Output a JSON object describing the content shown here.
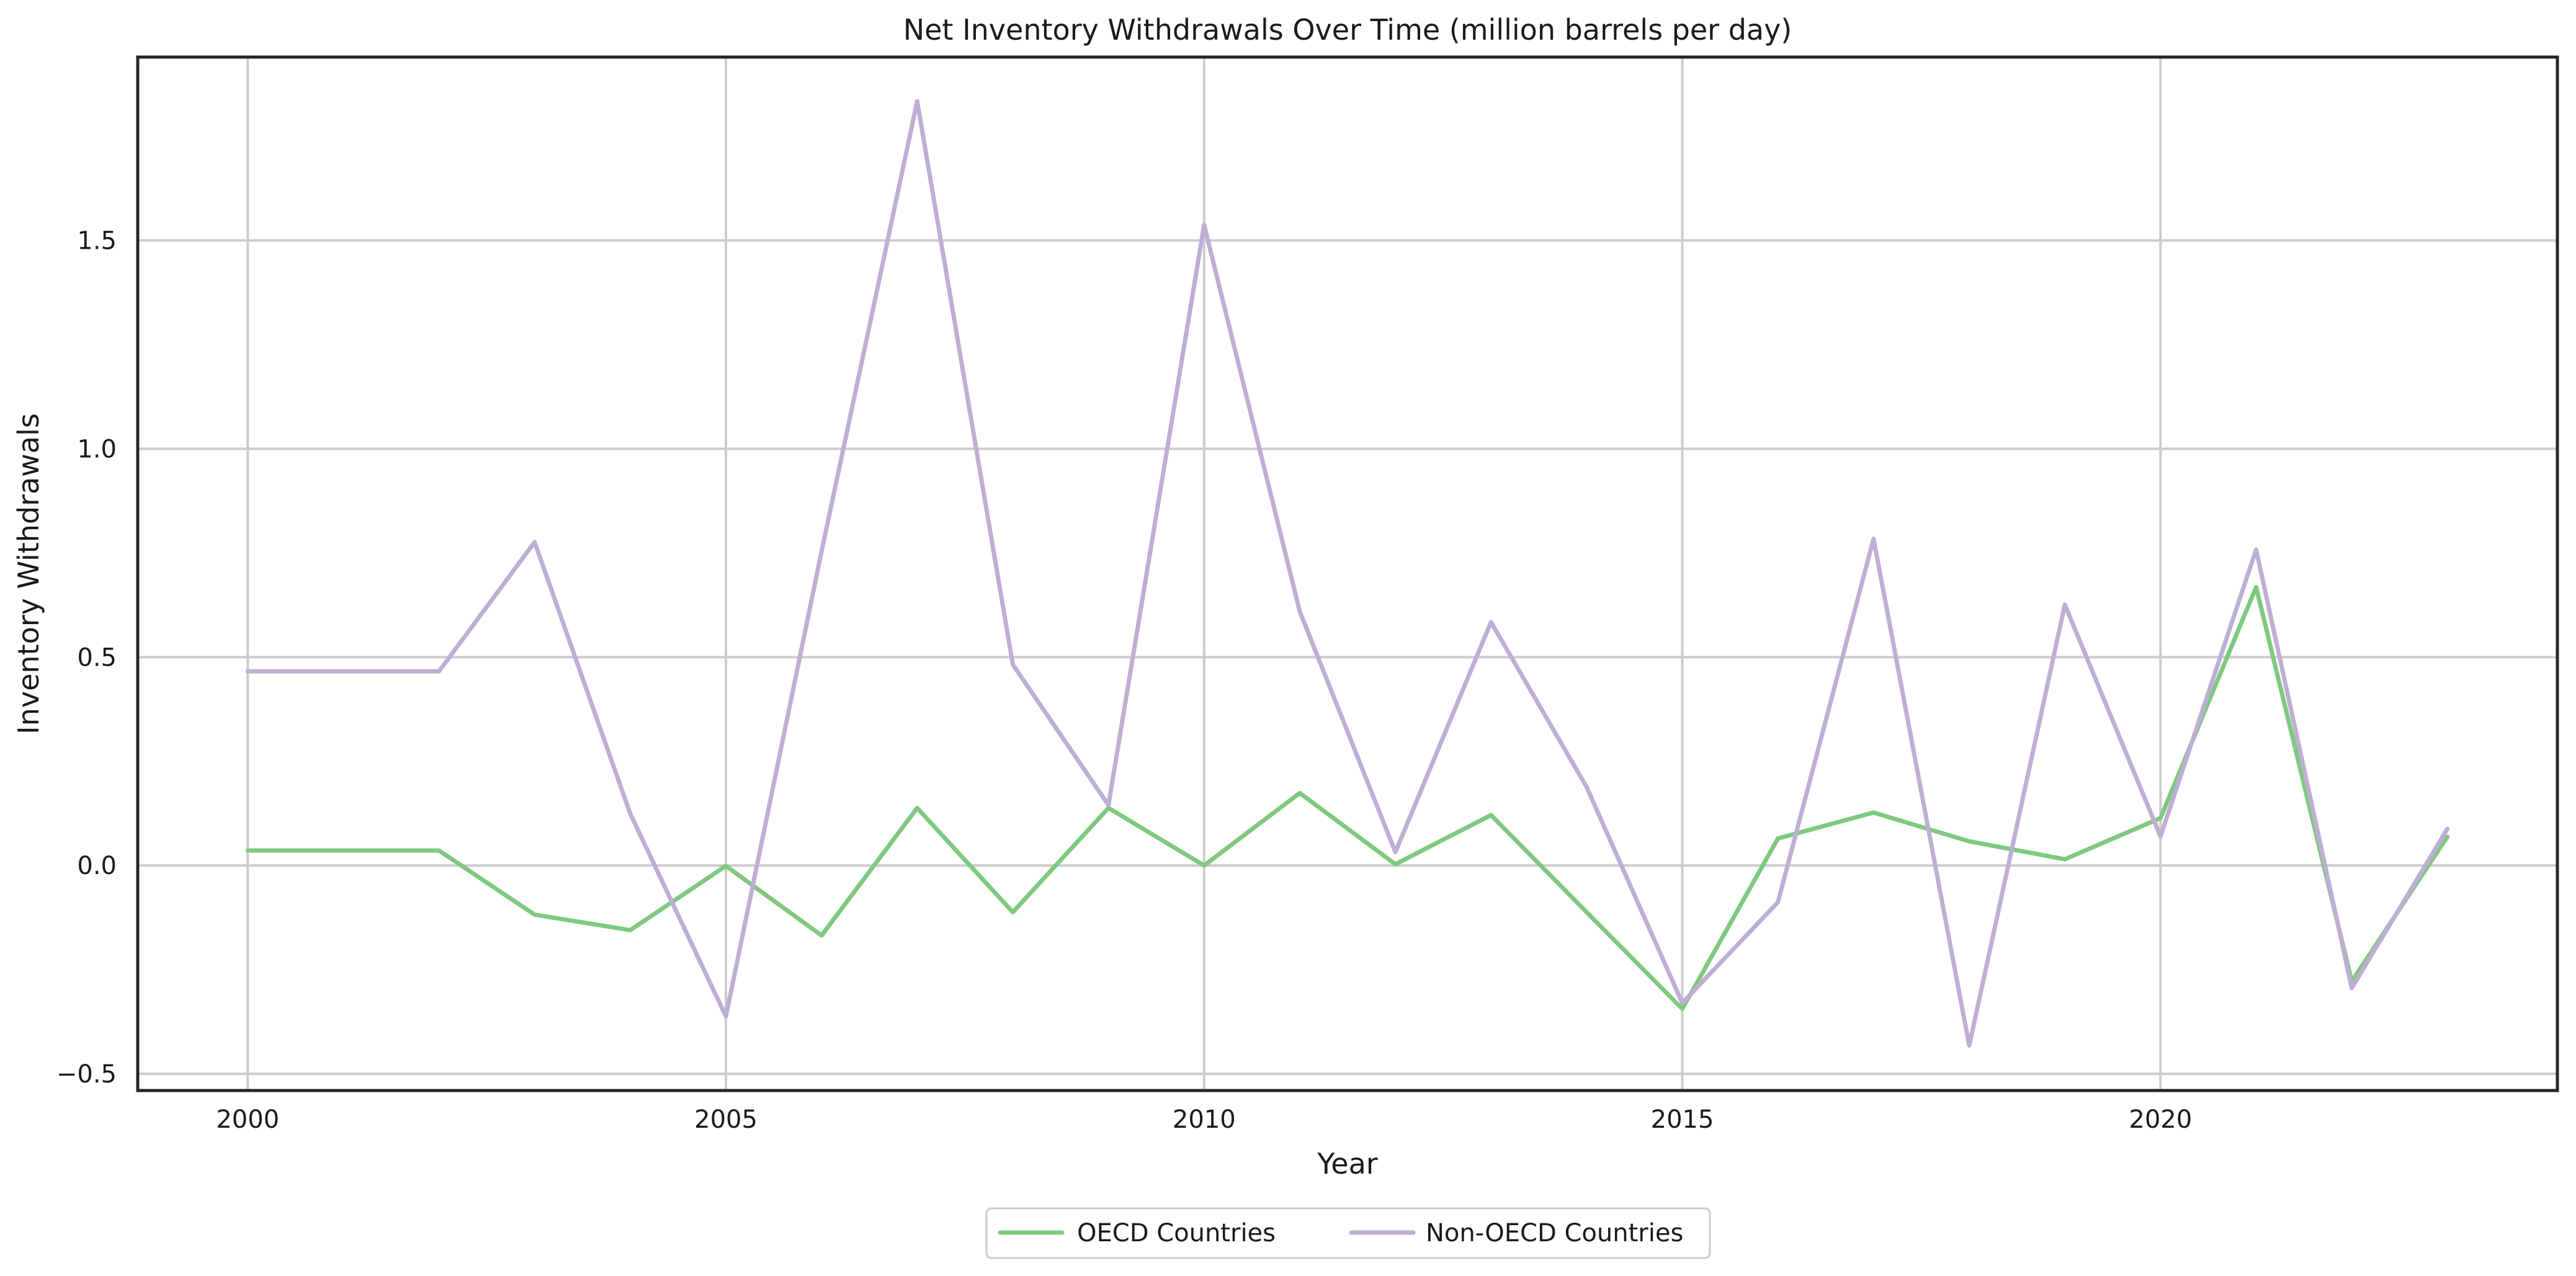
{
  "chart_data": {
    "type": "line",
    "title": "Net Inventory Withdrawals Over Time (million barrels per day)",
    "xlabel": "Year",
    "ylabel": "Inventory Withdrawals",
    "xlim": [
      1998.85,
      2024.15
    ],
    "ylim": [
      -0.54,
      1.94
    ],
    "xticks": [
      2000,
      2005,
      2010,
      2015,
      2020
    ],
    "yticks": [
      -0.5,
      0.0,
      0.5,
      1.0,
      1.5
    ],
    "ytick_labels": [
      "−0.5",
      "0.0",
      "0.5",
      "1.0",
      "1.5"
    ],
    "grid": true,
    "legend_position": "bottom-center",
    "x": [
      2000,
      2001,
      2002,
      2003,
      2004,
      2005,
      2006,
      2007,
      2008,
      2009,
      2010,
      2011,
      2012,
      2013,
      2014,
      2015,
      2016,
      2017,
      2018,
      2019,
      2020,
      2021,
      2022,
      2023
    ],
    "series": [
      {
        "name": "OECD Countries",
        "color": "#7fc97f",
        "values": [
          0.036,
          0.036,
          0.036,
          -0.118,
          -0.155,
          -0.001,
          -0.168,
          0.138,
          -0.112,
          0.138,
          0.0,
          0.174,
          0.003,
          0.121,
          -0.112,
          -0.344,
          0.065,
          0.127,
          0.058,
          0.015,
          0.114,
          0.668,
          -0.278,
          0.069
        ]
      },
      {
        "name": "Non-OECD Countries",
        "color": "#beaed4",
        "values": [
          0.466,
          0.466,
          0.466,
          0.776,
          0.124,
          -0.362,
          0.754,
          1.834,
          0.482,
          0.145,
          1.537,
          0.61,
          0.032,
          0.584,
          0.188,
          -0.33,
          -0.088,
          0.784,
          -0.432,
          0.626,
          0.07,
          0.758,
          -0.294,
          0.088
        ]
      }
    ]
  }
}
